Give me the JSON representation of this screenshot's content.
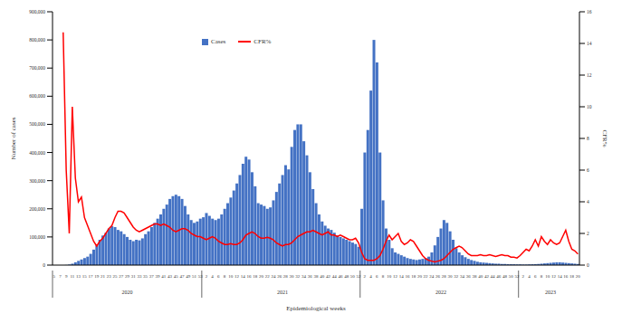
{
  "chart_data": {
    "type": "bar",
    "x_label": "Epidemiological weeks",
    "y_label": "Number of cases",
    "y2_label": "CFR%",
    "categories": [
      "5",
      null,
      "7",
      null,
      "9",
      null,
      "11",
      null,
      "13",
      null,
      "15",
      null,
      "17",
      null,
      "19",
      null,
      "21",
      null,
      "23",
      null,
      "25",
      null,
      "27",
      null,
      "29",
      null,
      "31",
      null,
      "33",
      null,
      "35",
      null,
      "37",
      null,
      "39",
      null,
      "41",
      null,
      "43",
      null,
      "45",
      null,
      "47",
      null,
      "49",
      null,
      "51",
      null,
      "53",
      null,
      "2",
      null,
      "4",
      null,
      "6",
      null,
      "8",
      null,
      "10",
      null,
      "12",
      null,
      "14",
      null,
      "16",
      null,
      "18",
      null,
      "20",
      null,
      "22",
      null,
      "24",
      null,
      "26",
      null,
      "28",
      null,
      "30",
      null,
      "32",
      null,
      "34",
      null,
      "36",
      null,
      "38",
      null,
      "40",
      null,
      "42",
      null,
      "44",
      null,
      "46",
      null,
      "48",
      null,
      "50",
      null,
      "52",
      null,
      "2",
      null,
      "4",
      null,
      "6",
      null,
      "8",
      null,
      "10",
      null,
      "12",
      null,
      "14",
      null,
      "16",
      null,
      "18",
      null,
      "20",
      null,
      "22",
      null,
      "24",
      null,
      "26",
      null,
      "28",
      null,
      "30",
      null,
      "32",
      null,
      "34",
      null,
      "36",
      null,
      "38",
      null,
      "40",
      null,
      "42",
      null,
      "44",
      null,
      "46",
      null,
      "48",
      null,
      "50",
      null,
      "52",
      null,
      "2",
      null,
      "4",
      null,
      "6",
      null,
      "8",
      null,
      "10",
      null,
      "12",
      null,
      "14",
      null,
      "16",
      null,
      "18",
      null,
      "20"
    ],
    "x_groups": [
      {
        "label": "2020",
        "count": 49
      },
      {
        "label": "2021",
        "count": 52
      },
      {
        "label": "2022",
        "count": 52
      },
      {
        "label": "2023",
        "count": 20
      }
    ],
    "series": [
      {
        "name": "Cases",
        "type": "bar",
        "color": "#4472c4",
        "values": [
          0,
          0,
          0,
          100,
          500,
          2000,
          5000,
          10000,
          15000,
          20000,
          25000,
          30000,
          40000,
          55000,
          70000,
          90000,
          105000,
          115000,
          130000,
          138000,
          135000,
          125000,
          120000,
          110000,
          100000,
          90000,
          85000,
          90000,
          88000,
          95000,
          110000,
          120000,
          135000,
          150000,
          165000,
          180000,
          200000,
          215000,
          235000,
          245000,
          250000,
          245000,
          235000,
          210000,
          180000,
          160000,
          150000,
          155000,
          165000,
          170000,
          185000,
          175000,
          165000,
          160000,
          165000,
          180000,
          200000,
          220000,
          240000,
          265000,
          290000,
          320000,
          360000,
          385000,
          375000,
          330000,
          280000,
          220000,
          215000,
          210000,
          200000,
          205000,
          230000,
          260000,
          290000,
          320000,
          355000,
          340000,
          420000,
          480000,
          500000,
          500000,
          440000,
          390000,
          330000,
          270000,
          220000,
          180000,
          155000,
          140000,
          130000,
          125000,
          115000,
          105000,
          100000,
          95000,
          90000,
          85000,
          80000,
          75000,
          65000,
          200000,
          400000,
          480000,
          620000,
          800000,
          720000,
          400000,
          230000,
          130000,
          90000,
          60000,
          45000,
          40000,
          35000,
          30000,
          25000,
          22000,
          20000,
          18000,
          20000,
          22000,
          25000,
          30000,
          45000,
          70000,
          100000,
          130000,
          160000,
          150000,
          120000,
          90000,
          60000,
          45000,
          35000,
          28000,
          22000,
          18000,
          15000,
          12000,
          10000,
          9000,
          8000,
          7000,
          6000,
          5000,
          5000,
          4000,
          4000,
          3500,
          3000,
          3000,
          2500,
          2500,
          2000,
          2000,
          2500,
          3000,
          3500,
          4000,
          5000,
          6000,
          7000,
          8000,
          9000,
          10000,
          10000,
          9000,
          8000,
          7000,
          6000,
          5000,
          4000
        ]
      },
      {
        "name": "CFR%",
        "type": "line",
        "color": "#ff0000",
        "axis": "y2",
        "values": [
          null,
          null,
          null,
          14.7,
          6,
          2,
          10,
          5.5,
          4,
          4.3,
          3,
          2.5,
          2,
          1.5,
          1.2,
          1.5,
          1.7,
          2,
          2.3,
          2.5,
          3,
          3.4,
          3.4,
          3.3,
          3,
          2.7,
          2.4,
          2.2,
          2.1,
          2.2,
          2.3,
          2.4,
          2.5,
          2.6,
          2.6,
          2.5,
          2.6,
          2.5,
          2.4,
          2.2,
          2.1,
          2.2,
          2.3,
          2.3,
          2.2,
          2.0,
          1.9,
          1.8,
          1.8,
          1.7,
          1.6,
          1.7,
          1.8,
          1.7,
          1.5,
          1.4,
          1.3,
          1.3,
          1.35,
          1.3,
          1.3,
          1.4,
          1.6,
          1.9,
          2.0,
          2.1,
          2.0,
          1.8,
          1.7,
          1.7,
          1.75,
          1.7,
          1.6,
          1.4,
          1.3,
          1.2,
          1.3,
          1.3,
          1.4,
          1.6,
          1.8,
          1.9,
          2.0,
          2.1,
          2.1,
          2.2,
          2.1,
          2.0,
          1.9,
          2.0,
          2.1,
          1.9,
          1.9,
          1.8,
          1.9,
          1.8,
          1.7,
          1.6,
          1.6,
          1.7,
          1.4,
          0.8,
          0.4,
          0.3,
          0.3,
          0.3,
          0.4,
          0.6,
          1.0,
          1.5,
          1.9,
          1.6,
          1.8,
          2.0,
          1.5,
          1.3,
          1.4,
          1.6,
          1.5,
          1.2,
          0.9,
          0.6,
          0.4,
          0.3,
          0.25,
          0.2,
          0.25,
          0.3,
          0.4,
          0.6,
          0.8,
          1.0,
          1.1,
          1.2,
          1.1,
          0.9,
          0.7,
          0.6,
          0.6,
          0.6,
          0.65,
          0.6,
          0.6,
          0.65,
          0.6,
          0.55,
          0.6,
          0.65,
          0.6,
          0.6,
          0.5,
          0.5,
          0.45,
          0.6,
          0.8,
          1.0,
          0.9,
          1.2,
          1.6,
          1.2,
          1.8,
          1.5,
          1.3,
          1.6,
          1.4,
          1.3,
          1.4,
          1.8,
          2.2,
          1.5,
          1.0,
          0.9,
          0.7
        ]
      }
    ],
    "ylim": [
      0,
      900000
    ],
    "yticks": [
      0,
      {
        "value": 100000,
        "label": "100,000"
      },
      {
        "value": 200000,
        "label": "200,000"
      },
      {
        "value": 300000,
        "label": "300,000"
      },
      {
        "value": 400000,
        "label": "400,000"
      },
      {
        "value": 500000,
        "label": "500,000"
      },
      {
        "value": 600000,
        "label": "600,000"
      },
      {
        "value": 700000,
        "label": "700,000"
      },
      {
        "value": 800000,
        "label": "800,000"
      },
      {
        "value": 900000,
        "label": "900,000"
      }
    ],
    "y2lim": [
      0,
      16
    ],
    "y2ticks": [
      0,
      2,
      4,
      6,
      8,
      10,
      12,
      14,
      16
    ],
    "grid": false,
    "legend": "top"
  }
}
